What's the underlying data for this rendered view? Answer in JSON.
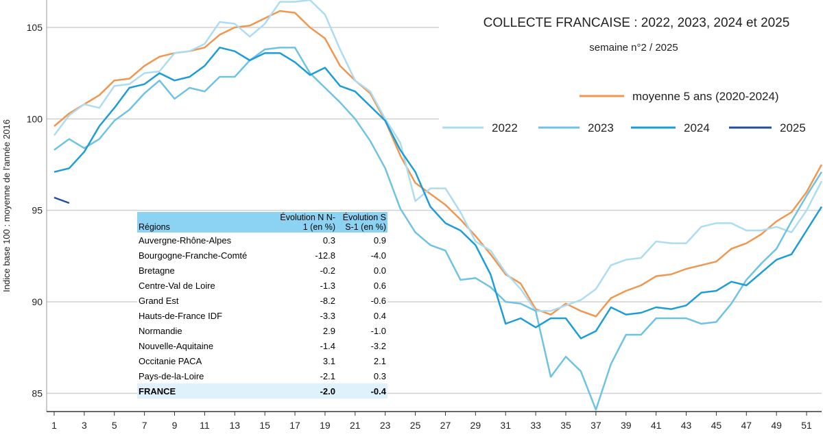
{
  "chart_data": {
    "type": "line",
    "title": "COLLECTE FRANCAISE : 2022, 2023, 2024 et 2025",
    "subtitle": "semaine n°2 / 2025",
    "y_label": "Indice base 100 : moyenne de l'année 2016",
    "x": [
      1,
      2,
      3,
      4,
      5,
      6,
      7,
      8,
      9,
      10,
      11,
      12,
      13,
      14,
      15,
      16,
      17,
      18,
      19,
      20,
      21,
      22,
      23,
      24,
      25,
      26,
      27,
      28,
      29,
      30,
      31,
      32,
      33,
      34,
      35,
      36,
      37,
      38,
      39,
      40,
      41,
      42,
      43,
      44,
      45,
      46,
      47,
      48,
      49,
      50,
      51,
      52
    ],
    "xlim": [
      0.5,
      52
    ],
    "xticks": [
      1,
      3,
      5,
      7,
      9,
      11,
      13,
      15,
      17,
      19,
      21,
      23,
      25,
      27,
      29,
      31,
      33,
      35,
      37,
      39,
      41,
      43,
      45,
      47,
      49,
      51
    ],
    "ylim": [
      84,
      106.5
    ],
    "yticks": [
      85,
      90,
      95,
      100,
      105
    ],
    "grid": true,
    "series": [
      {
        "name": "moyenne 5 ans (2020-2024)",
        "color": "#f0964e",
        "values": [
          99.6,
          100.3,
          100.8,
          101.3,
          102.1,
          102.2,
          102.9,
          103.4,
          103.6,
          103.7,
          103.9,
          104.6,
          105.0,
          105.1,
          105.5,
          105.9,
          105.8,
          105.0,
          104.4,
          102.9,
          102.1,
          101.4,
          99.9,
          98.0,
          96.5,
          95.9,
          95.3,
          94.5,
          93.6,
          92.6,
          91.5,
          91.0,
          89.6,
          89.3,
          89.9,
          89.5,
          89.2,
          90.2,
          90.6,
          90.9,
          91.4,
          91.5,
          91.8,
          92.0,
          92.2,
          92.9,
          93.2,
          93.7,
          94.4,
          94.9,
          96.0,
          97.5
        ]
      },
      {
        "name": "2022",
        "color": "#acdcf2",
        "values": [
          99.1,
          100.2,
          100.8,
          100.6,
          101.8,
          101.9,
          102.5,
          102.6,
          103.6,
          103.7,
          104.1,
          105.3,
          105.2,
          104.5,
          105.2,
          106.4,
          106.4,
          106.5,
          105.7,
          103.8,
          102.1,
          101.5,
          100.0,
          98.7,
          95.5,
          96.2,
          96.2,
          94.9,
          93.3,
          92.8,
          91.6,
          90.7,
          89.5,
          89.5,
          89.8,
          90.1,
          90.7,
          92.0,
          92.3,
          92.4,
          93.3,
          93.2,
          93.2,
          94.1,
          94.3,
          94.3,
          93.9,
          93.9,
          94.1,
          93.8,
          95.0,
          96.6
        ]
      },
      {
        "name": "2023",
        "color": "#6ec2e3",
        "values": [
          98.3,
          98.9,
          98.4,
          98.9,
          99.9,
          100.5,
          101.4,
          102.1,
          101.1,
          101.7,
          101.5,
          102.3,
          102.3,
          103.2,
          103.8,
          103.9,
          103.9,
          102.5,
          101.7,
          100.9,
          100.0,
          98.8,
          97.3,
          95.1,
          93.8,
          93.1,
          92.8,
          91.2,
          91.3,
          90.8,
          90.0,
          89.9,
          89.5,
          85.9,
          87.0,
          86.2,
          84.1,
          86.6,
          88.2,
          88.2,
          89.1,
          89.1,
          89.1,
          88.8,
          88.9,
          89.9,
          91.2,
          92.1,
          92.9,
          94.4,
          95.8,
          97.1
        ]
      },
      {
        "name": "2024",
        "color": "#1c9dd8",
        "values": [
          97.1,
          97.3,
          98.2,
          99.6,
          100.6,
          101.7,
          101.9,
          102.5,
          102.1,
          102.3,
          102.9,
          103.9,
          103.7,
          103.2,
          103.6,
          103.6,
          103.1,
          102.4,
          102.8,
          101.8,
          101.5,
          100.7,
          99.9,
          98.3,
          97.1,
          95.2,
          94.3,
          93.9,
          93.1,
          91.5,
          88.8,
          89.1,
          88.6,
          89.1,
          89.1,
          88.0,
          88.4,
          89.7,
          89.3,
          89.4,
          89.7,
          89.6,
          89.8,
          90.5,
          90.6,
          91.1,
          90.9,
          91.6,
          92.3,
          92.6,
          93.9,
          95.2
        ]
      },
      {
        "name": "2025",
        "color": "#1f4f9e",
        "values": [
          95.7,
          95.4,
          null,
          null,
          null,
          null,
          null,
          null,
          null,
          null,
          null,
          null,
          null,
          null,
          null,
          null,
          null,
          null,
          null,
          null,
          null,
          null,
          null,
          null,
          null,
          null,
          null,
          null,
          null,
          null,
          null,
          null,
          null,
          null,
          null,
          null,
          null,
          null,
          null,
          null,
          null,
          null,
          null,
          null,
          null,
          null,
          null,
          null,
          null,
          null,
          null,
          null
        ]
      }
    ],
    "table": {
      "header": [
        "Régions",
        "Évolution N N-1 (en %)",
        "Évolution S S-1 (en %)"
      ],
      "rows": [
        [
          "Auvergne-Rhône-Alpes",
          "0.3",
          "0.9"
        ],
        [
          "Bourgogne-Franche-Comté",
          "-12.8",
          "-4.0"
        ],
        [
          "Bretagne",
          "-0.2",
          "0.0"
        ],
        [
          "Centre-Val de Loire",
          "-1.3",
          "0.6"
        ],
        [
          "Grand Est",
          "-8.2",
          "-0.6"
        ],
        [
          "Hauts-de-France IDF",
          "-3.3",
          "0.4"
        ],
        [
          "Normandie",
          "2.9",
          "-1.0"
        ],
        [
          "Nouvelle-Aquitaine",
          "-1.4",
          "-3.2"
        ],
        [
          "Occitanie PACA",
          "3.1",
          "2.1"
        ],
        [
          "Pays-de-la-Loire",
          "-2.1",
          "0.3"
        ],
        [
          "FRANCE",
          "-2.0",
          "-0.4"
        ]
      ]
    }
  }
}
